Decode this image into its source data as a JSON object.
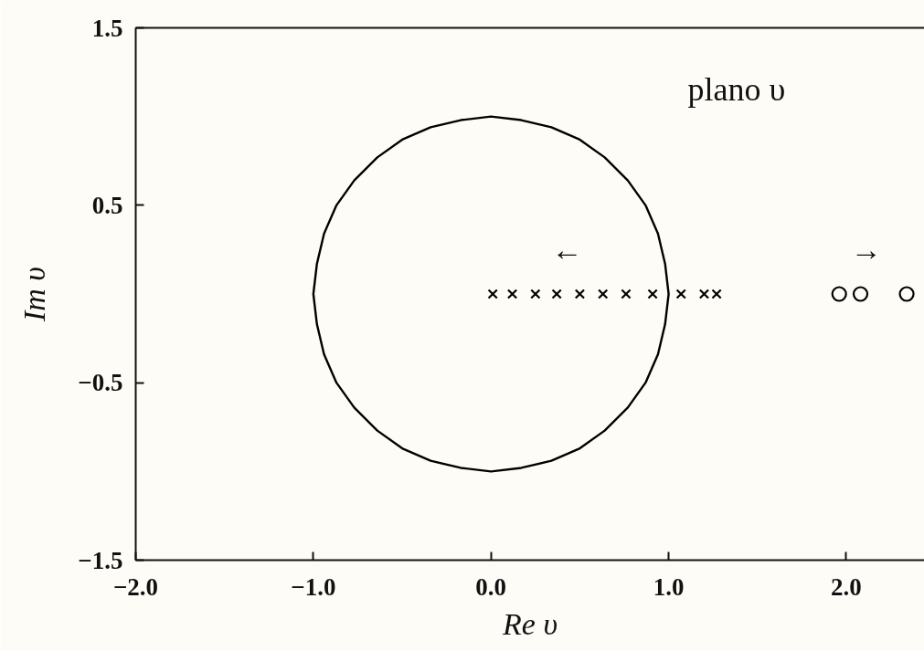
{
  "chart_data": {
    "type": "scatter",
    "xlabel": "Re υ",
    "ylabel": "Im υ",
    "xlim": [
      -2.0,
      2.44
    ],
    "ylim": [
      -1.5,
      1.5
    ],
    "xticks": [
      {
        "value": -2.0,
        "label": "−2.0"
      },
      {
        "value": -1.0,
        "label": "−1.0"
      },
      {
        "value": 0.0,
        "label": "0.0"
      },
      {
        "value": 1.0,
        "label": "1.0"
      },
      {
        "value": 2.0,
        "label": "2.0"
      }
    ],
    "yticks": [
      {
        "value": -1.5,
        "label": "−1.5"
      },
      {
        "value": -0.5,
        "label": "−0.5"
      },
      0.5,
      1.5
    ],
    "series": [
      {
        "color": "#000000",
        "marker": "cross",
        "x": [
          0.01,
          0.12,
          0.25,
          0.37,
          0.5,
          0.63,
          0.76,
          0.91,
          1.07,
          1.2,
          1.27
        ],
        "values": [
          0,
          0,
          0,
          0,
          0,
          0,
          0,
          0,
          0,
          0,
          0
        ]
      },
      {
        "color": "#000000",
        "marker": "circle",
        "x": [
          1.96,
          2.08,
          2.34
        ],
        "values": [
          0,
          0,
          0
        ]
      },
      {
        "type": "line",
        "color": "#000000",
        "marker": "none",
        "line_style": "solid",
        "x": [
          1,
          0.98,
          0.94,
          0.87,
          0.77,
          0.64,
          0.5,
          0.34,
          0.17,
          0,
          -0.17,
          -0.34,
          -0.5,
          -0.64,
          -0.77,
          -0.87,
          -0.94,
          -0.98,
          -1,
          -0.98,
          -0.94,
          -0.87,
          -0.77,
          -0.64,
          -0.5,
          -0.34,
          -0.17,
          0,
          0.17,
          0.34,
          0.5,
          0.64,
          0.77,
          0.87,
          0.94,
          0.98,
          1,
          0.98
        ],
        "values": [
          0,
          0.17,
          0.34,
          0.5,
          0.64,
          0.77,
          0.87,
          0.94,
          0.98,
          1,
          0.98,
          0.94,
          0.87,
          0.77,
          0.64,
          0.5,
          0.34,
          0.17,
          0,
          -0.17,
          -0.34,
          -0.5,
          -0.64,
          -0.77,
          -0.87,
          -0.94,
          -0.98,
          -1,
          -0.98,
          -0.94,
          -0.87,
          -0.77,
          -0.64,
          -0.5,
          -0.34,
          -0.17,
          0,
          0.17
        ]
      }
    ],
    "annotations": [
      "plano υ",
      "←",
      "→"
    ],
    "grid": false
  }
}
